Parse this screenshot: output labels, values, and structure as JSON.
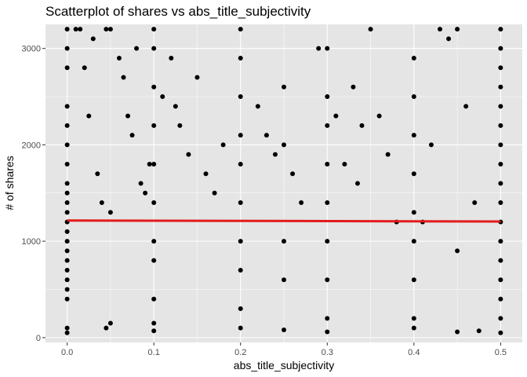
{
  "chart_data": {
    "type": "scatter",
    "title": "Scatterplot of shares vs abs_title_subjectivity",
    "xlabel": "abs_title_subjectivity",
    "ylabel": "# of shares",
    "xlim": [
      -0.025,
      0.525
    ],
    "ylim": [
      -50,
      3250
    ],
    "x_ticks": [
      0.0,
      0.1,
      0.2,
      0.3,
      0.4,
      0.5
    ],
    "x_tick_labels": [
      "0.0",
      "0.1",
      "0.2",
      "0.3",
      "0.4",
      "0.5"
    ],
    "y_ticks": [
      0,
      1000,
      2000,
      3000
    ],
    "y_tick_labels": [
      "0",
      "1000",
      "2000",
      "3000"
    ],
    "grid": true,
    "background": "#e5e5e5",
    "grid_color": "#ffffff",
    "point_color": "#000000",
    "trend_color": "#e31a1c",
    "trend_line": {
      "x": [
        0.0,
        0.5
      ],
      "y": [
        1215,
        1205
      ]
    },
    "series": [
      {
        "points": [
          [
            0.0,
            3200
          ],
          [
            0.0,
            3000
          ],
          [
            0.0,
            2800
          ],
          [
            0.0,
            2400
          ],
          [
            0.0,
            2200
          ],
          [
            0.0,
            2000
          ],
          [
            0.0,
            1800
          ],
          [
            0.0,
            1600
          ],
          [
            0.0,
            1500
          ],
          [
            0.0,
            1400
          ],
          [
            0.0,
            1300
          ],
          [
            0.0,
            1200
          ],
          [
            0.0,
            1100
          ],
          [
            0.0,
            1000
          ],
          [
            0.0,
            900
          ],
          [
            0.0,
            800
          ],
          [
            0.0,
            700
          ],
          [
            0.0,
            600
          ],
          [
            0.0,
            500
          ],
          [
            0.0,
            400
          ],
          [
            0.0,
            100
          ],
          [
            0.0,
            50
          ],
          [
            0.01,
            3200
          ],
          [
            0.015,
            3200
          ],
          [
            0.02,
            2800
          ],
          [
            0.025,
            2300
          ],
          [
            0.03,
            3100
          ],
          [
            0.035,
            1700
          ],
          [
            0.04,
            1400
          ],
          [
            0.045,
            3200
          ],
          [
            0.05,
            3200
          ],
          [
            0.05,
            1300
          ],
          [
            0.05,
            150
          ],
          [
            0.045,
            100
          ],
          [
            0.06,
            2900
          ],
          [
            0.065,
            2700
          ],
          [
            0.07,
            2300
          ],
          [
            0.075,
            2100
          ],
          [
            0.08,
            3000
          ],
          [
            0.085,
            1600
          ],
          [
            0.09,
            1500
          ],
          [
            0.095,
            1800
          ],
          [
            0.1,
            3200
          ],
          [
            0.1,
            3000
          ],
          [
            0.1,
            2600
          ],
          [
            0.1,
            2200
          ],
          [
            0.1,
            1800
          ],
          [
            0.1,
            1400
          ],
          [
            0.1,
            1000
          ],
          [
            0.1,
            800
          ],
          [
            0.1,
            400
          ],
          [
            0.1,
            150
          ],
          [
            0.1,
            70
          ],
          [
            0.11,
            2500
          ],
          [
            0.12,
            2900
          ],
          [
            0.125,
            2400
          ],
          [
            0.13,
            2200
          ],
          [
            0.14,
            1900
          ],
          [
            0.15,
            2700
          ],
          [
            0.16,
            1700
          ],
          [
            0.17,
            1500
          ],
          [
            0.18,
            2000
          ],
          [
            0.2,
            3200
          ],
          [
            0.2,
            2900
          ],
          [
            0.2,
            2500
          ],
          [
            0.2,
            2100
          ],
          [
            0.2,
            1800
          ],
          [
            0.2,
            1400
          ],
          [
            0.2,
            1000
          ],
          [
            0.2,
            700
          ],
          [
            0.2,
            300
          ],
          [
            0.2,
            100
          ],
          [
            0.22,
            2400
          ],
          [
            0.23,
            2100
          ],
          [
            0.24,
            1900
          ],
          [
            0.25,
            2600
          ],
          [
            0.25,
            2000
          ],
          [
            0.25,
            1000
          ],
          [
            0.25,
            600
          ],
          [
            0.25,
            80
          ],
          [
            0.26,
            1700
          ],
          [
            0.27,
            1400
          ],
          [
            0.29,
            3000
          ],
          [
            0.3,
            3000
          ],
          [
            0.3,
            2500
          ],
          [
            0.3,
            2200
          ],
          [
            0.3,
            1800
          ],
          [
            0.3,
            1400
          ],
          [
            0.3,
            1000
          ],
          [
            0.3,
            600
          ],
          [
            0.3,
            200
          ],
          [
            0.3,
            60
          ],
          [
            0.31,
            2300
          ],
          [
            0.32,
            1800
          ],
          [
            0.33,
            2600
          ],
          [
            0.335,
            1600
          ],
          [
            0.34,
            2200
          ],
          [
            0.35,
            3200
          ],
          [
            0.36,
            2300
          ],
          [
            0.37,
            1900
          ],
          [
            0.38,
            1200
          ],
          [
            0.4,
            2900
          ],
          [
            0.4,
            2500
          ],
          [
            0.4,
            2100
          ],
          [
            0.4,
            1700
          ],
          [
            0.4,
            1300
          ],
          [
            0.4,
            1000
          ],
          [
            0.4,
            600
          ],
          [
            0.4,
            200
          ],
          [
            0.4,
            100
          ],
          [
            0.41,
            1200
          ],
          [
            0.42,
            2000
          ],
          [
            0.43,
            3200
          ],
          [
            0.44,
            3100
          ],
          [
            0.45,
            3200
          ],
          [
            0.45,
            900
          ],
          [
            0.45,
            60
          ],
          [
            0.46,
            2400
          ],
          [
            0.47,
            1400
          ],
          [
            0.475,
            70
          ],
          [
            0.5,
            3200
          ],
          [
            0.5,
            3000
          ],
          [
            0.5,
            2800
          ],
          [
            0.5,
            2600
          ],
          [
            0.5,
            2400
          ],
          [
            0.5,
            2200
          ],
          [
            0.5,
            2000
          ],
          [
            0.5,
            1800
          ],
          [
            0.5,
            1600
          ],
          [
            0.5,
            1400
          ],
          [
            0.5,
            1200
          ],
          [
            0.5,
            1000
          ],
          [
            0.5,
            800
          ],
          [
            0.5,
            600
          ],
          [
            0.5,
            400
          ],
          [
            0.5,
            200
          ],
          [
            0.5,
            50
          ]
        ]
      }
    ]
  }
}
